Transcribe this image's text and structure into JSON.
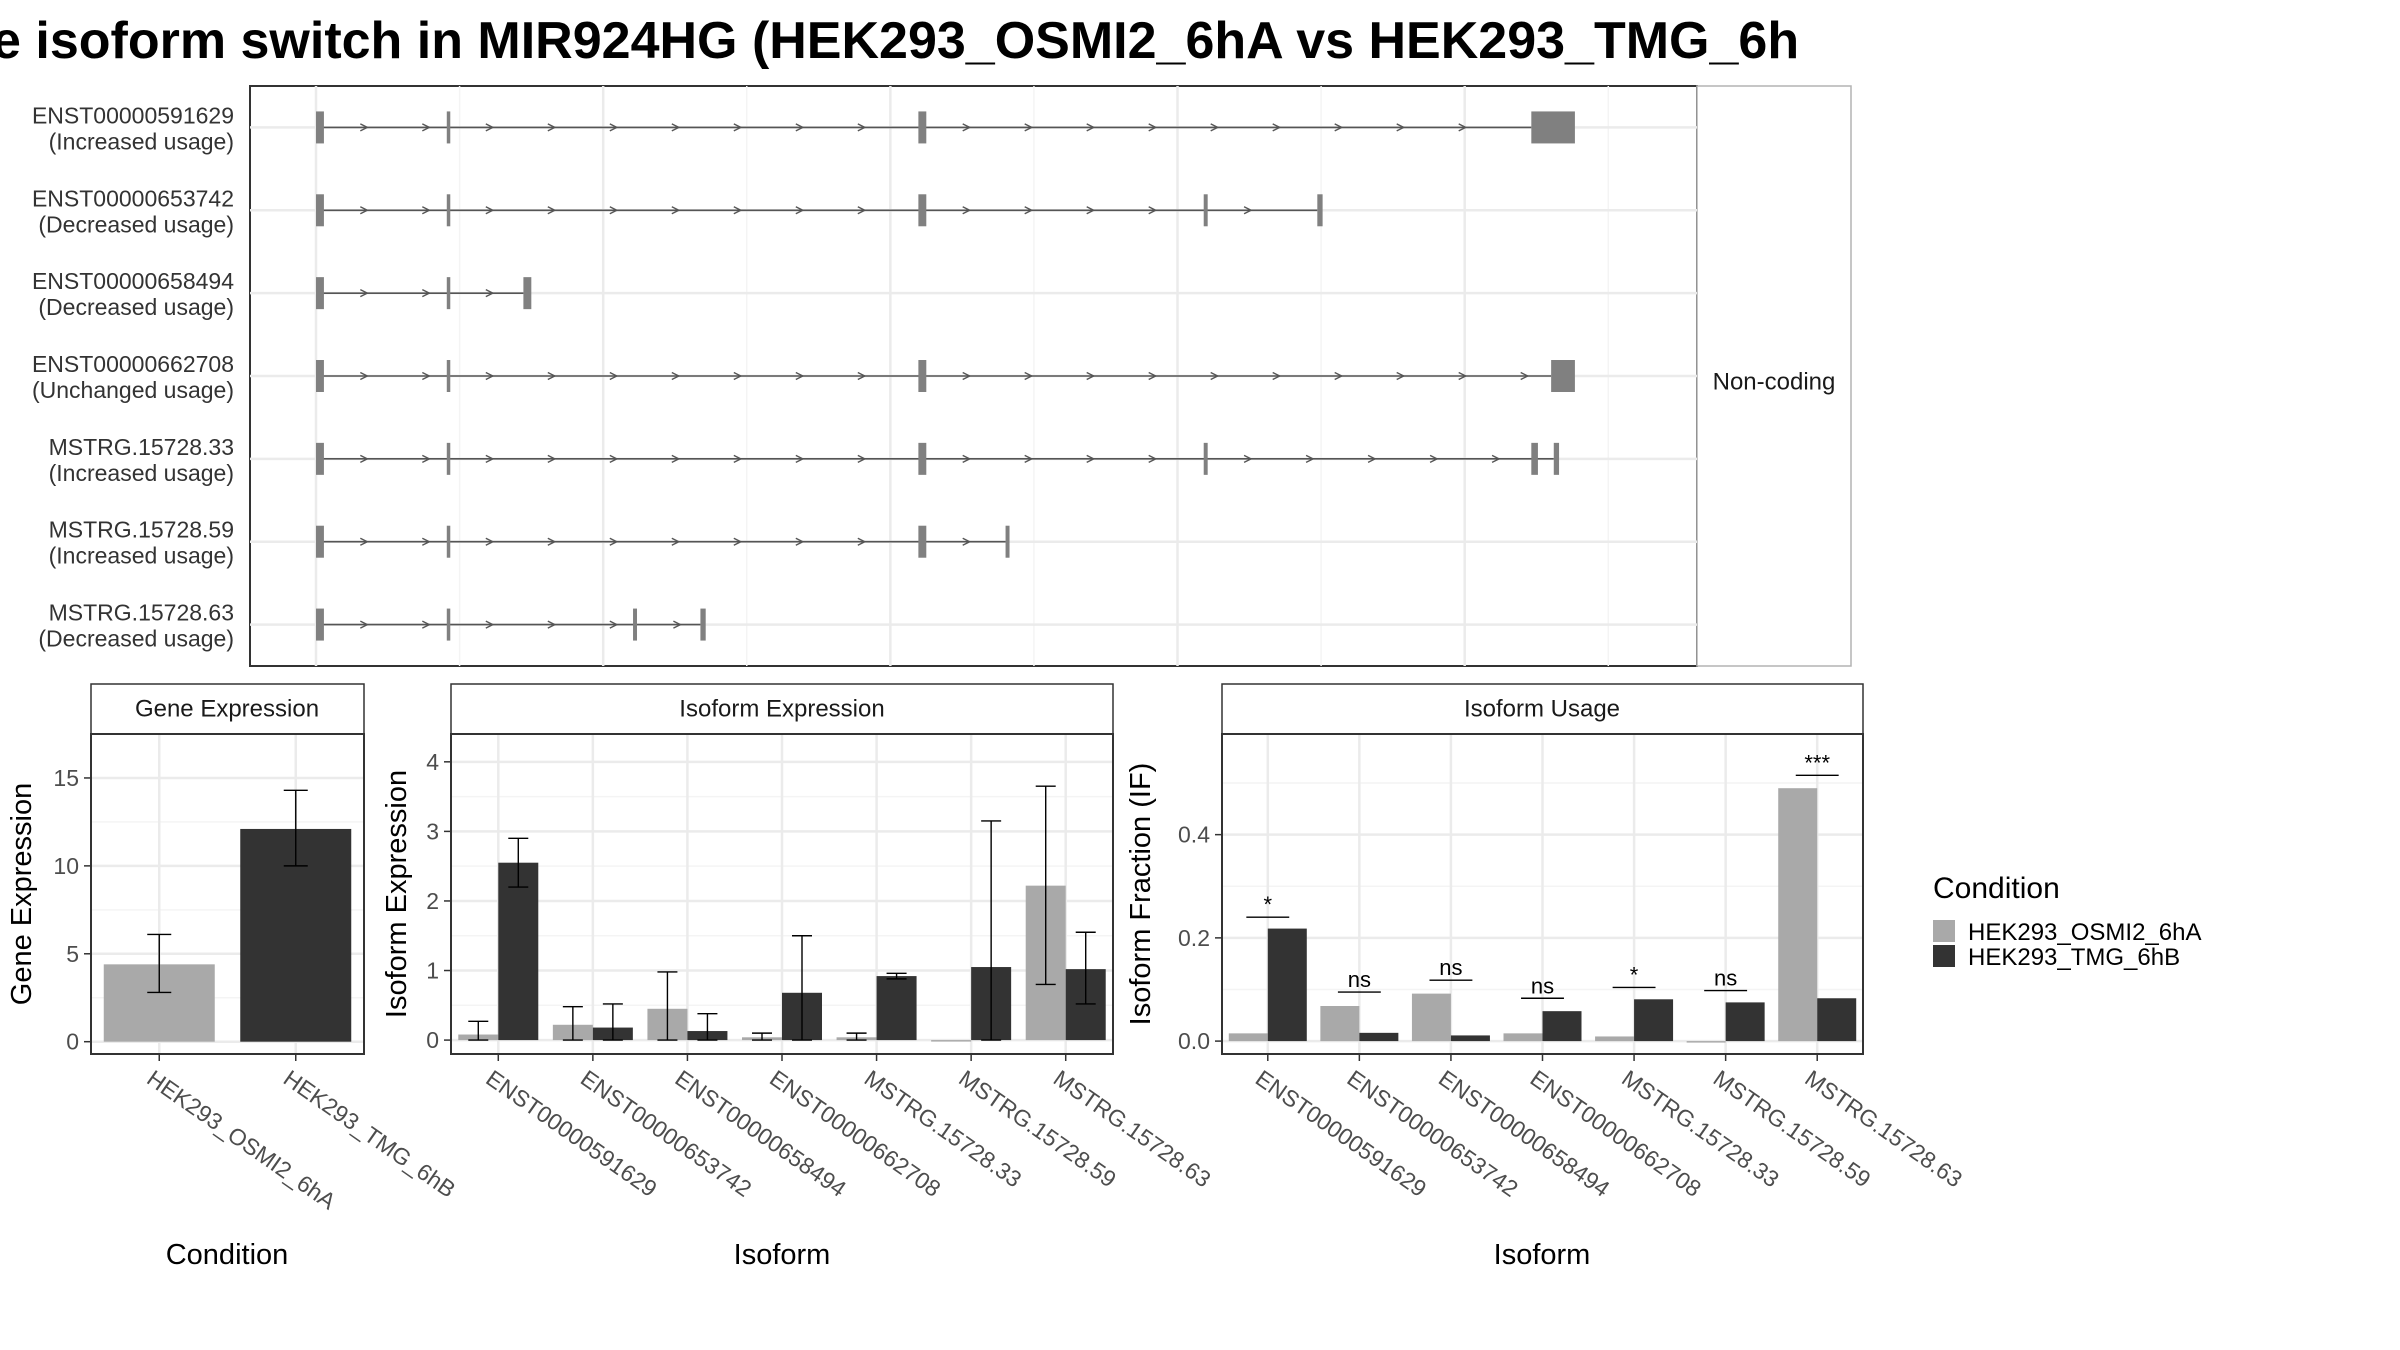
{
  "title": "e isoform switch in MIR924HG (HEK293_OSMI2_6hA vs HEK293_TMG_6h",
  "colors": {
    "cond_a": "#a9a9a9",
    "cond_b": "#333333",
    "exon": "#808080",
    "grid": "#ebebeb"
  },
  "transcript_panel": {
    "strip_label": "Non-coding",
    "transcripts": [
      {
        "id": "ENST00000591629",
        "usage": "(Increased usage)",
        "exons": [
          [
            0.0,
            0.006
          ],
          [
            0.099,
            0.101
          ],
          [
            0.456,
            0.462
          ],
          [
            0.92,
            0.953
          ]
        ]
      },
      {
        "id": "ENST00000653742",
        "usage": "(Decreased usage)",
        "exons": [
          [
            0.0,
            0.006
          ],
          [
            0.099,
            0.101
          ],
          [
            0.456,
            0.462
          ],
          [
            0.672,
            0.675
          ],
          [
            0.758,
            0.762
          ]
        ]
      },
      {
        "id": "ENST00000658494",
        "usage": "(Decreased usage)",
        "exons": [
          [
            0.0,
            0.006
          ],
          [
            0.099,
            0.101
          ],
          [
            0.157,
            0.163
          ]
        ]
      },
      {
        "id": "ENST00000662708",
        "usage": "(Unchanged usage)",
        "exons": [
          [
            0.0,
            0.006
          ],
          [
            0.099,
            0.101
          ],
          [
            0.456,
            0.462
          ],
          [
            0.935,
            0.953
          ]
        ]
      },
      {
        "id": "MSTRG.15728.33",
        "usage": "(Increased usage)",
        "exons": [
          [
            0.0,
            0.006
          ],
          [
            0.099,
            0.101
          ],
          [
            0.456,
            0.462
          ],
          [
            0.672,
            0.675
          ],
          [
            0.92,
            0.925
          ],
          [
            0.937,
            0.941
          ]
        ]
      },
      {
        "id": "MSTRG.15728.59",
        "usage": "(Increased usage)",
        "exons": [
          [
            0.0,
            0.006
          ],
          [
            0.099,
            0.101
          ],
          [
            0.456,
            0.462
          ],
          [
            0.522,
            0.525
          ]
        ]
      },
      {
        "id": "MSTRG.15728.63",
        "usage": "(Decreased usage)",
        "exons": [
          [
            0.0,
            0.006
          ],
          [
            0.099,
            0.101
          ],
          [
            0.24,
            0.243
          ],
          [
            0.291,
            0.295
          ]
        ]
      }
    ]
  },
  "chart_data": [
    {
      "type": "bar",
      "title": "Gene Expression",
      "xlabel": "Condition",
      "ylabel": "Gene Expression",
      "ylim": [
        -0.7,
        17.5
      ],
      "yticks": [
        0,
        5,
        10,
        15
      ],
      "categories": [
        "HEK293_OSMI2_6hA",
        "HEK293_TMG_6hB"
      ],
      "series": [
        {
          "values": [
            4.4,
            12.1
          ],
          "err_low": [
            2.8,
            10.0
          ],
          "err_high": [
            6.1,
            14.3
          ]
        }
      ]
    },
    {
      "type": "bar",
      "title": "Isoform Expression",
      "xlabel": "Isoform",
      "ylabel": "Isoform Expression",
      "ylim": [
        -0.2,
        4.4
      ],
      "yticks": [
        0,
        1,
        2,
        3,
        4
      ],
      "categories": [
        "ENST00000591629",
        "ENST00000653742",
        "ENST00000658494",
        "ENST00000662708",
        "MSTRG.15728.33",
        "MSTRG.15728.59",
        "MSTRG.15728.63"
      ],
      "series": [
        {
          "name": "HEK293_OSMI2_6hA",
          "values": [
            0.08,
            0.22,
            0.45,
            0.04,
            0.04,
            0.0,
            2.22
          ],
          "err_low": [
            0.0,
            0.0,
            0.0,
            0.0,
            0.0,
            0.0,
            0.8
          ],
          "err_high": [
            0.27,
            0.48,
            0.98,
            0.1,
            0.1,
            0.0,
            3.65
          ]
        },
        {
          "name": "HEK293_TMG_6hB",
          "values": [
            2.55,
            0.18,
            0.13,
            0.68,
            0.92,
            1.05,
            1.02
          ],
          "err_low": [
            2.2,
            0.0,
            0.0,
            0.0,
            0.88,
            0.0,
            0.52
          ],
          "err_high": [
            2.9,
            0.52,
            0.38,
            1.5,
            0.96,
            3.15,
            1.55
          ]
        }
      ]
    },
    {
      "type": "bar",
      "title": "Isoform Usage",
      "xlabel": "Isoform",
      "ylabel": "Isoform Fraction (IF)",
      "ylim": [
        -0.025,
        0.595
      ],
      "yticks": [
        0.0,
        0.2,
        0.4
      ],
      "ytick_labels": [
        "0.0",
        "0.2",
        "0.4"
      ],
      "categories": [
        "ENST00000591629",
        "ENST00000653742",
        "ENST00000658494",
        "ENST00000662708",
        "MSTRG.15728.33",
        "MSTRG.15728.59",
        "MSTRG.15728.63"
      ],
      "series": [
        {
          "name": "HEK293_OSMI2_6hA",
          "values": [
            0.015,
            0.068,
            0.092,
            0.015,
            0.009,
            0.0,
            0.49
          ]
        },
        {
          "name": "HEK293_TMG_6hB",
          "values": [
            0.218,
            0.016,
            0.011,
            0.058,
            0.081,
            0.075,
            0.083
          ]
        }
      ],
      "significance": [
        {
          "label": "*",
          "y": 0.24
        },
        {
          "label": "ns",
          "y": 0.095
        },
        {
          "label": "ns",
          "y": 0.118
        },
        {
          "label": "ns",
          "y": 0.083
        },
        {
          "label": "*",
          "y": 0.104
        },
        {
          "label": "ns",
          "y": 0.098
        },
        {
          "label": "***",
          "y": 0.515
        }
      ]
    }
  ],
  "legend": {
    "title": "Condition",
    "items": [
      "HEK293_OSMI2_6hA",
      "HEK293_TMG_6hB"
    ]
  }
}
